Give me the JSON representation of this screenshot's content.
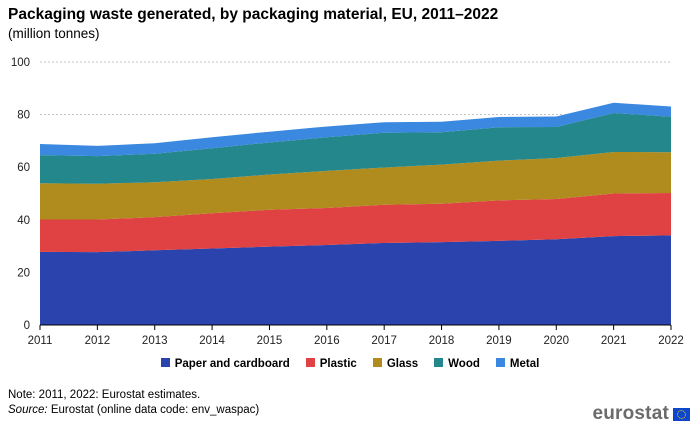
{
  "header": {
    "title": "Packaging waste generated, by packaging material, EU, 2011–2022",
    "subtitle": "(million tonnes)"
  },
  "chart_data": {
    "type": "area",
    "stacked": true,
    "title": "Packaging waste generated, by packaging material, EU, 2011–2022",
    "ylabel": "(million tonnes)",
    "xlabel": "",
    "ylim": [
      0,
      100
    ],
    "yticks": [
      0,
      20,
      40,
      60,
      80,
      100
    ],
    "grid": true,
    "x": [
      "2011",
      "2012",
      "2013",
      "2014",
      "2015",
      "2016",
      "2017",
      "2018",
      "2019",
      "2020",
      "2021",
      "2022"
    ],
    "series": [
      {
        "name": "Paper and cardboard",
        "color": "#2a43ad",
        "values": [
          27.8,
          27.7,
          28.4,
          29.1,
          29.8,
          30.4,
          31.2,
          31.5,
          32.0,
          32.6,
          33.8,
          34.1
        ]
      },
      {
        "name": "Plastic",
        "color": "#e04243",
        "values": [
          12.3,
          12.4,
          12.6,
          13.4,
          14.0,
          14.1,
          14.5,
          14.6,
          15.4,
          15.3,
          16.2,
          16.1
        ]
      },
      {
        "name": "Glass",
        "color": "#b08c1f",
        "values": [
          13.8,
          13.6,
          13.3,
          13.0,
          13.4,
          14.1,
          14.2,
          14.9,
          15.1,
          15.6,
          15.8,
          15.5
        ]
      },
      {
        "name": "Wood",
        "color": "#23878c",
        "values": [
          10.7,
          10.5,
          10.8,
          11.7,
          12.2,
          12.8,
          13.2,
          12.3,
          12.7,
          11.8,
          14.8,
          13.5
        ]
      },
      {
        "name": "Metal",
        "color": "#3a88e0",
        "values": [
          4.2,
          3.9,
          4.0,
          4.2,
          4.1,
          4.1,
          4.0,
          4.0,
          3.9,
          4.0,
          3.9,
          3.9
        ]
      }
    ],
    "legend_position": "bottom"
  },
  "footer": {
    "note": "Note: 2011, 2022: Eurostat estimates.",
    "source_label": "Source:",
    "source_text": " Eurostat (online data code: env_waspac)",
    "logo_text": "eurostat"
  }
}
